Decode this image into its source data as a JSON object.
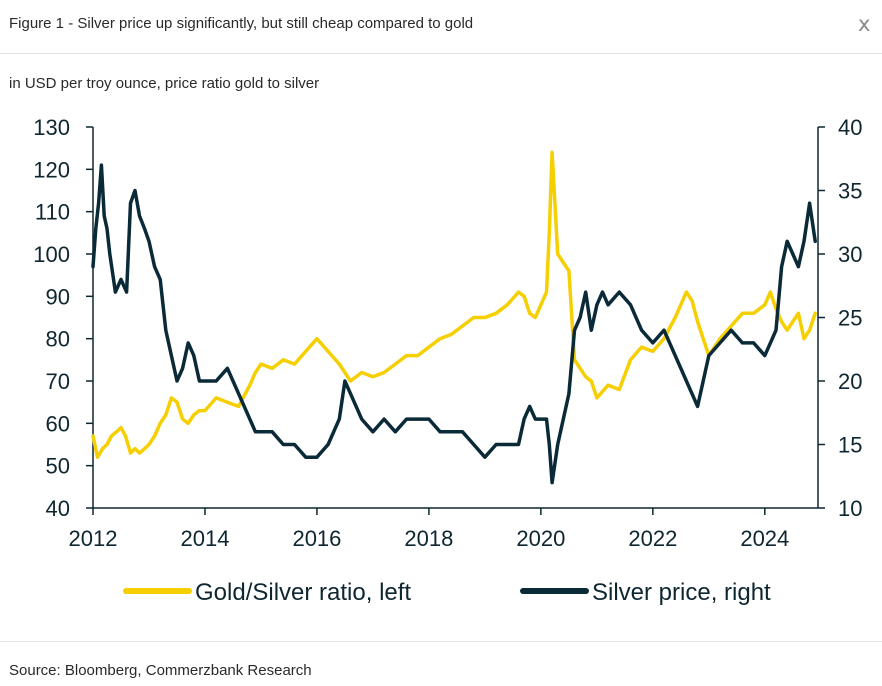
{
  "header": {
    "title": "Figure 1 - Silver price up significantly, but still cheap compared to gold",
    "close_label": "x"
  },
  "subtitle": "in USD per troy ounce, price ratio gold to silver",
  "source": "Source: Bloomberg, Commerzbank Research",
  "colors": {
    "ratio": "#f5cf00",
    "silver": "#0b2a38",
    "axis": "#0e2630"
  },
  "chart_data": {
    "type": "line",
    "title": "",
    "xlabel": "",
    "ylabel_left": "",
    "ylabel_right": "",
    "xlim": [
      2012,
      2024.95
    ],
    "ylim_left": [
      40,
      130
    ],
    "ylim_right": [
      10,
      40
    ],
    "x_ticks": [
      "2012",
      "2014",
      "2016",
      "2018",
      "2020",
      "2022",
      "2024"
    ],
    "y_left_ticks": [
      "40",
      "50",
      "60",
      "70",
      "80",
      "90",
      "100",
      "110",
      "120",
      "130"
    ],
    "y_right_ticks": [
      "10",
      "15",
      "20",
      "25",
      "30",
      "35",
      "40"
    ],
    "grid": false,
    "legend_position": "bottom",
    "series": [
      {
        "name": "Gold/Silver ratio, left",
        "axis": "left",
        "x": [
          2012.0,
          2012.08,
          2012.17,
          2012.25,
          2012.33,
          2012.42,
          2012.5,
          2012.58,
          2012.67,
          2012.75,
          2012.83,
          2012.92,
          2013.0,
          2013.1,
          2013.2,
          2013.3,
          2013.4,
          2013.5,
          2013.6,
          2013.7,
          2013.8,
          2013.9,
          2014.0,
          2014.2,
          2014.4,
          2014.6,
          2014.8,
          2014.9,
          2015.0,
          2015.2,
          2015.4,
          2015.6,
          2015.8,
          2016.0,
          2016.2,
          2016.4,
          2016.6,
          2016.8,
          2017.0,
          2017.2,
          2017.4,
          2017.6,
          2017.8,
          2018.0,
          2018.2,
          2018.4,
          2018.6,
          2018.8,
          2019.0,
          2019.2,
          2019.4,
          2019.6,
          2019.7,
          2019.8,
          2019.9,
          2020.0,
          2020.1,
          2020.15,
          2020.2,
          2020.25,
          2020.3,
          2020.4,
          2020.5,
          2020.6,
          2020.7,
          2020.8,
          2020.9,
          2021.0,
          2021.2,
          2021.4,
          2021.6,
          2021.8,
          2022.0,
          2022.2,
          2022.4,
          2022.6,
          2022.7,
          2022.8,
          2022.9,
          2023.0,
          2023.2,
          2023.4,
          2023.6,
          2023.8,
          2024.0,
          2024.1,
          2024.2,
          2024.3,
          2024.4,
          2024.5,
          2024.6,
          2024.7,
          2024.8,
          2024.9
        ],
        "values": [
          57,
          52,
          54,
          55,
          57,
          58,
          59,
          57,
          53,
          54,
          53,
          54,
          55,
          57,
          60,
          62,
          66,
          65,
          61,
          60,
          62,
          63,
          63,
          66,
          65,
          64,
          69,
          72,
          74,
          73,
          75,
          74,
          77,
          80,
          77,
          74,
          70,
          72,
          71,
          72,
          74,
          76,
          76,
          78,
          80,
          81,
          83,
          85,
          85,
          86,
          88,
          91,
          90,
          86,
          85,
          88,
          91,
          105,
          124,
          112,
          100,
          98,
          96,
          75,
          73,
          71,
          70,
          66,
          69,
          68,
          75,
          78,
          77,
          80,
          85,
          91,
          89,
          84,
          80,
          76,
          80,
          83,
          86,
          86,
          88,
          91,
          87,
          84,
          82,
          84,
          86,
          80,
          82,
          86
        ]
      },
      {
        "name": "Silver price, right",
        "axis": "right",
        "x": [
          2012.0,
          2012.05,
          2012.1,
          2012.15,
          2012.2,
          2012.25,
          2012.3,
          2012.4,
          2012.5,
          2012.6,
          2012.67,
          2012.75,
          2012.83,
          2012.92,
          2013.0,
          2013.1,
          2013.2,
          2013.3,
          2013.4,
          2013.5,
          2013.6,
          2013.7,
          2013.8,
          2013.9,
          2014.0,
          2014.2,
          2014.4,
          2014.6,
          2014.8,
          2014.9,
          2015.0,
          2015.2,
          2015.4,
          2015.6,
          2015.8,
          2016.0,
          2016.2,
          2016.4,
          2016.5,
          2016.6,
          2016.8,
          2017.0,
          2017.2,
          2017.4,
          2017.6,
          2017.8,
          2018.0,
          2018.2,
          2018.4,
          2018.6,
          2018.8,
          2019.0,
          2019.2,
          2019.4,
          2019.6,
          2019.7,
          2019.8,
          2019.9,
          2020.0,
          2020.1,
          2020.15,
          2020.2,
          2020.3,
          2020.4,
          2020.5,
          2020.6,
          2020.7,
          2020.8,
          2020.9,
          2021.0,
          2021.1,
          2021.2,
          2021.4,
          2021.6,
          2021.8,
          2022.0,
          2022.2,
          2022.4,
          2022.6,
          2022.7,
          2022.8,
          2022.9,
          2023.0,
          2023.2,
          2023.4,
          2023.6,
          2023.8,
          2024.0,
          2024.1,
          2024.2,
          2024.3,
          2024.4,
          2024.5,
          2024.6,
          2024.7,
          2024.8,
          2024.9
        ],
        "values": [
          29,
          32,
          34,
          37,
          33,
          32,
          30,
          27,
          28,
          27,
          34,
          35,
          33,
          32,
          31,
          29,
          28,
          24,
          22,
          20,
          21,
          23,
          22,
          20,
          20,
          20,
          21,
          19,
          17,
          16,
          16,
          16,
          15,
          15,
          14,
          14,
          15,
          17,
          20,
          19,
          17,
          16,
          17,
          16,
          17,
          17,
          17,
          16,
          16,
          16,
          15,
          14,
          15,
          15,
          15,
          17,
          18,
          17,
          17,
          17,
          15,
          12,
          15,
          17,
          19,
          24,
          25,
          27,
          24,
          26,
          27,
          26,
          27,
          26,
          24,
          23,
          24,
          22,
          20,
          19,
          18,
          20,
          22,
          23,
          24,
          23,
          23,
          22,
          23,
          24,
          29,
          31,
          30,
          29,
          31,
          34,
          31
        ]
      }
    ]
  }
}
